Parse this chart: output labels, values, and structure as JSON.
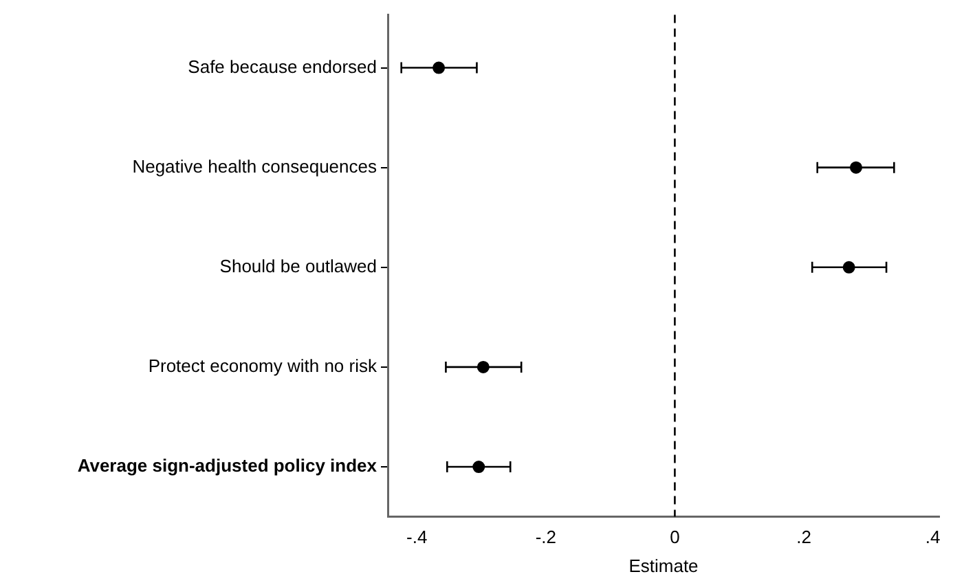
{
  "chart_data": {
    "type": "scatter",
    "orientation": "horizontal",
    "categories": [
      "Safe because endorsed",
      "Negative health consequences",
      "Should be outlawed",
      "Protect economy with no risk",
      "Average sign-adjusted policy index"
    ],
    "values": [
      -0.366,
      0.281,
      0.27,
      -0.297,
      -0.304
    ],
    "errors": [
      [
        -0.424,
        -0.307
      ],
      [
        0.221,
        0.34
      ],
      [
        0.213,
        0.328
      ],
      [
        -0.355,
        -0.238
      ],
      [
        -0.353,
        -0.255
      ]
    ],
    "color": "#000000",
    "xlabel": "Estimate",
    "xlim": [
      -0.445,
      0.41
    ],
    "xticks": [
      {
        "value": -0.4,
        "label": "-.4"
      },
      {
        "value": -0.2,
        "label": "-.2"
      },
      0,
      {
        "value": 0.2,
        "label": ".2"
      },
      {
        "value": 0.4,
        "label": ".4"
      }
    ],
    "ref_lines": [
      {
        "axis": "x",
        "value": 0,
        "line_style": "dashed"
      }
    ],
    "marker": "circle",
    "grid": false,
    "legend": false
  }
}
